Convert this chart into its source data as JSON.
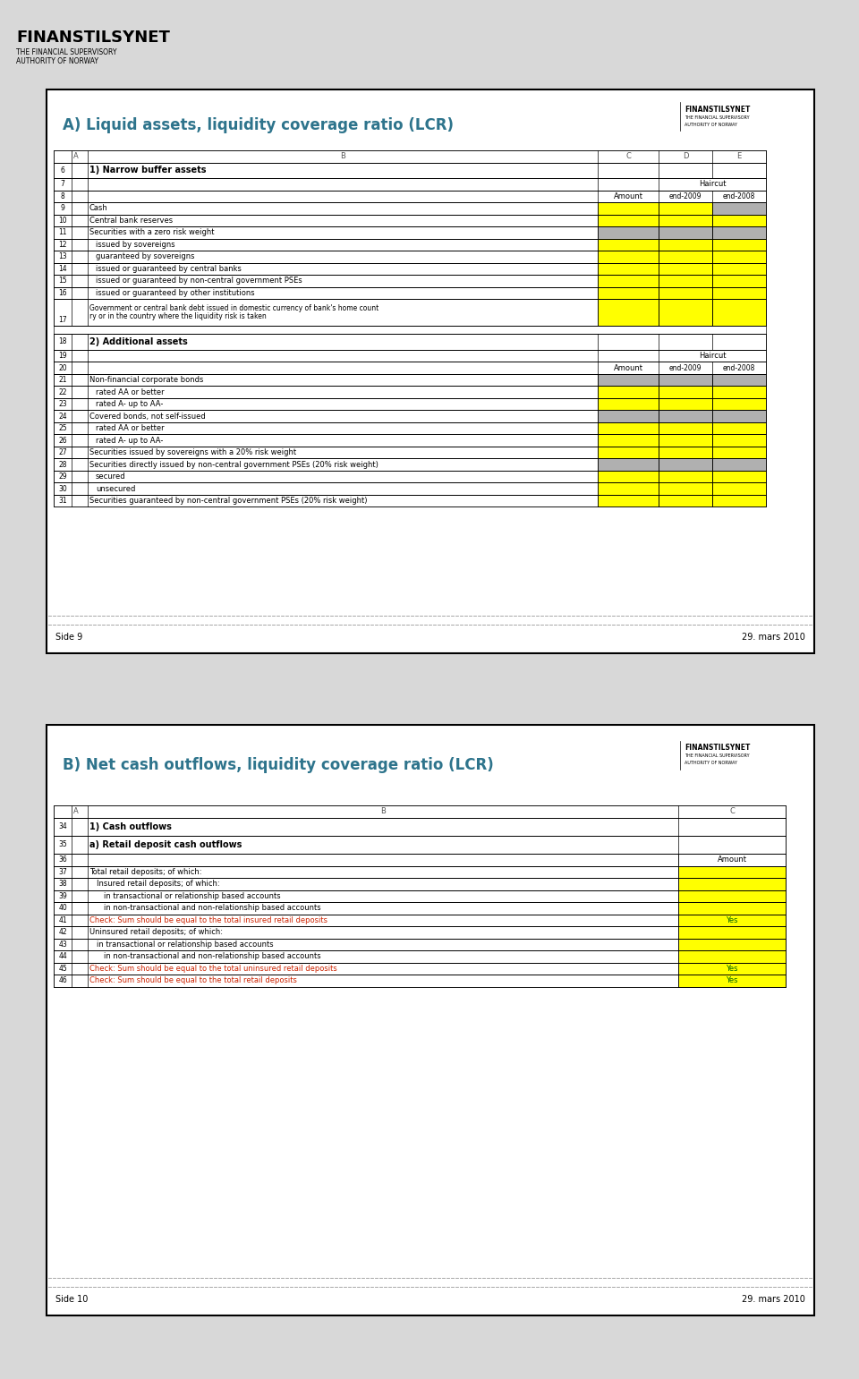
{
  "header_title": "FINANSTILSYNET",
  "header_sub1": "THE FINANCIAL SUPERVISORY",
  "header_sub2": "AUTHORITY OF NORWAY",
  "section_a_title": "A) Liquid assets, liquidity coverage ratio (LCR)",
  "section_b_title": "B) Net cash outflows, liquidity coverage ratio (LCR)",
  "footer_a_left": "Side 9",
  "footer_a_right": "29. mars 2010",
  "footer_b_left": "Side 10",
  "footer_b_right": "29. mars 2010",
  "teal": "#2e748c",
  "yellow": "#ffff00",
  "gray_cell": "#b0b0b0",
  "check_text_color": "#cc2200",
  "yes_text_color": "#006600",
  "page_bg": "#d8d8d8",
  "panel_bg": "#ffffff",
  "section_a": [
    {
      "rn": "9",
      "ind": 0,
      "txt": "Cash",
      "c": "#ffff00",
      "d": "#ffff00",
      "e": "#b0b0b0"
    },
    {
      "rn": "10",
      "ind": 0,
      "txt": "Central bank reserves",
      "c": "#ffff00",
      "d": "#ffff00",
      "e": "#ffff00"
    },
    {
      "rn": "11",
      "ind": 0,
      "txt": "Securities with a zero risk weight",
      "c": "#b0b0b0",
      "d": "#b0b0b0",
      "e": "#b0b0b0"
    },
    {
      "rn": "12",
      "ind": 1,
      "txt": "issued by sovereigns",
      "c": "#ffff00",
      "d": "#ffff00",
      "e": "#ffff00"
    },
    {
      "rn": "13",
      "ind": 1,
      "txt": "guaranteed by sovereigns",
      "c": "#ffff00",
      "d": "#ffff00",
      "e": "#ffff00"
    },
    {
      "rn": "14",
      "ind": 1,
      "txt": "issued or guaranteed by central banks",
      "c": "#ffff00",
      "d": "#ffff00",
      "e": "#ffff00"
    },
    {
      "rn": "15",
      "ind": 1,
      "txt": "issued or guaranteed by non-central government PSEs",
      "c": "#ffff00",
      "d": "#ffff00",
      "e": "#ffff00"
    },
    {
      "rn": "16",
      "ind": 1,
      "txt": "issued or guaranteed by other institutions",
      "c": "#ffff00",
      "d": "#ffff00",
      "e": "#ffff00"
    }
  ],
  "section_a2": [
    {
      "rn": "21",
      "ind": 0,
      "txt": "Non-financial corporate bonds",
      "c": "#b0b0b0",
      "d": "#b0b0b0",
      "e": "#b0b0b0"
    },
    {
      "rn": "22",
      "ind": 1,
      "txt": "rated AA or better",
      "c": "#ffff00",
      "d": "#ffff00",
      "e": "#ffff00"
    },
    {
      "rn": "23",
      "ind": 1,
      "txt": "rated A- up to AA-",
      "c": "#ffff00",
      "d": "#ffff00",
      "e": "#ffff00"
    },
    {
      "rn": "24",
      "ind": 0,
      "txt": "Covered bonds, not self-issued",
      "c": "#b0b0b0",
      "d": "#b0b0b0",
      "e": "#b0b0b0"
    },
    {
      "rn": "25",
      "ind": 1,
      "txt": "rated AA or better",
      "c": "#ffff00",
      "d": "#ffff00",
      "e": "#ffff00"
    },
    {
      "rn": "26",
      "ind": 1,
      "txt": "rated A- up to AA-",
      "c": "#ffff00",
      "d": "#ffff00",
      "e": "#ffff00"
    },
    {
      "rn": "27",
      "ind": 0,
      "txt": "Securities issued by sovereigns with a 20% risk weight",
      "c": "#ffff00",
      "d": "#ffff00",
      "e": "#ffff00"
    },
    {
      "rn": "28",
      "ind": 0,
      "txt": "Securities directly issued by non-central government PSEs (20% risk weight)",
      "c": "#b0b0b0",
      "d": "#b0b0b0",
      "e": "#b0b0b0"
    },
    {
      "rn": "29",
      "ind": 1,
      "txt": "secured",
      "c": "#ffff00",
      "d": "#ffff00",
      "e": "#ffff00"
    },
    {
      "rn": "30",
      "ind": 1,
      "txt": "unsecured",
      "c": "#ffff00",
      "d": "#ffff00",
      "e": "#ffff00"
    },
    {
      "rn": "31",
      "ind": 0,
      "txt": "Securities guaranteed by non-central government PSEs (20% risk weight)",
      "c": "#ffff00",
      "d": "#ffff00",
      "e": "#ffff00"
    }
  ],
  "govt_text": "Government or central bank debt issued in domestic currency of bank's home country or in the country where the liquidity risk is taken",
  "section_b": [
    {
      "rn": "37",
      "ind": 0,
      "txt": "Total retail deposits; of which:",
      "c": "#ffff00",
      "check": false,
      "yes": false
    },
    {
      "rn": "38",
      "ind": 1,
      "txt": "Insured retail deposits; of which:",
      "c": "#ffff00",
      "check": false,
      "yes": false
    },
    {
      "rn": "39",
      "ind": 2,
      "txt": "in transactional or relationship based accounts",
      "c": "#ffff00",
      "check": false,
      "yes": false
    },
    {
      "rn": "40",
      "ind": 2,
      "txt": "in non-transactional and non-relationship based accounts",
      "c": "#ffff00",
      "check": false,
      "yes": false
    },
    {
      "rn": "41",
      "ind": 0,
      "txt": "Check: Sum should be equal to the total insured retail deposits",
      "c": "#ffff00",
      "check": true,
      "yes": true
    },
    {
      "rn": "42",
      "ind": 0,
      "txt": "Uninsured retail deposits; of which:",
      "c": "#ffff00",
      "check": false,
      "yes": false
    },
    {
      "rn": "43",
      "ind": 1,
      "txt": "in transactional or relationship based accounts",
      "c": "#ffff00",
      "check": false,
      "yes": false
    },
    {
      "rn": "44",
      "ind": 2,
      "txt": "in non-transactional and non-relationship based accounts",
      "c": "#ffff00",
      "check": false,
      "yes": false
    },
    {
      "rn": "45",
      "ind": 0,
      "txt": "Check: Sum should be equal to the total uninsured retail deposits",
      "c": "#ffff00",
      "check": true,
      "yes": true
    },
    {
      "rn": "46",
      "ind": 0,
      "txt": "Check: Sum should be equal to the total retail deposits",
      "c": "#ffff00",
      "check": true,
      "yes": true
    }
  ]
}
